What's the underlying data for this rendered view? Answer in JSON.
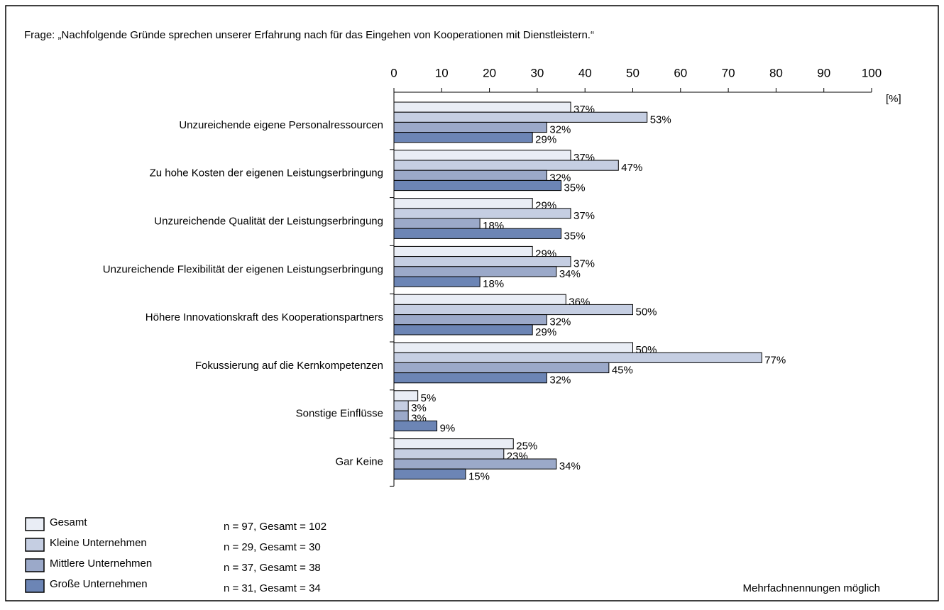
{
  "chart_data": {
    "type": "bar",
    "orientation": "horizontal",
    "title": "Frage: „Nachfolgende Gründe sprechen unserer Erfahrung nach für das Eingehen von Kooperationen mit Dienstleistern.“",
    "x_label": "[%]",
    "categories": [
      "Unzureichende  eigene Personalressourcen",
      "Zu hohe Kosten der eigenen Leistungserbringung",
      "Unzureichende  Qualität der Leistungserbringung",
      "Unzureichende  Flexibilität der eigenen Leistungserbringung",
      "Höhere Innovationskraft des Kooperationspartners",
      "Fokussierung auf die Kernkompetenzen",
      "Sonstige Einflüsse",
      "Gar Keine"
    ],
    "series": [
      {
        "name": "Gesamt",
        "color": "#e9edf5",
        "note": "n = 97, Gesamt = 102",
        "values": [
          37,
          37,
          29,
          29,
          36,
          50,
          5,
          25
        ],
        "value_labels": [
          "37%",
          "37%",
          "29%",
          "29%",
          "36%",
          "50%",
          "5%",
          "25%"
        ]
      },
      {
        "name": "Kleine Unternehmen",
        "color": "#c5cee2",
        "note": "n = 29, Gesamt = 30",
        "values": [
          53,
          47,
          37,
          37,
          50,
          77,
          3,
          23
        ],
        "value_labels": [
          "53%",
          "47%",
          "37%",
          "37%",
          "50%",
          "77%",
          "3%",
          "23%"
        ]
      },
      {
        "name": "Mittlere Unternehmen",
        "color": "#9ba9c9",
        "note": "n = 37, Gesamt = 38",
        "values": [
          32,
          32,
          18,
          34,
          32,
          45,
          3,
          34
        ],
        "value_labels": [
          "32%",
          "32%",
          "18%",
          "34%",
          "32%",
          "45%",
          "3%",
          "34%"
        ]
      },
      {
        "name": "Große Unternehmen",
        "color": "#6c85b5",
        "note": "n = 31, Gesamt = 34",
        "values": [
          29,
          35,
          35,
          18,
          29,
          32,
          9,
          15
        ],
        "value_labels": [
          "29%",
          "35%",
          "35%",
          "18%",
          "29%",
          "32%",
          "9%",
          "15%"
        ]
      }
    ],
    "xlim": [
      0,
      100
    ],
    "xticks": [
      0,
      10,
      20,
      30,
      40,
      50,
      60,
      70,
      80,
      90,
      100
    ],
    "footnote": "Mehrfachnennungen möglich"
  }
}
